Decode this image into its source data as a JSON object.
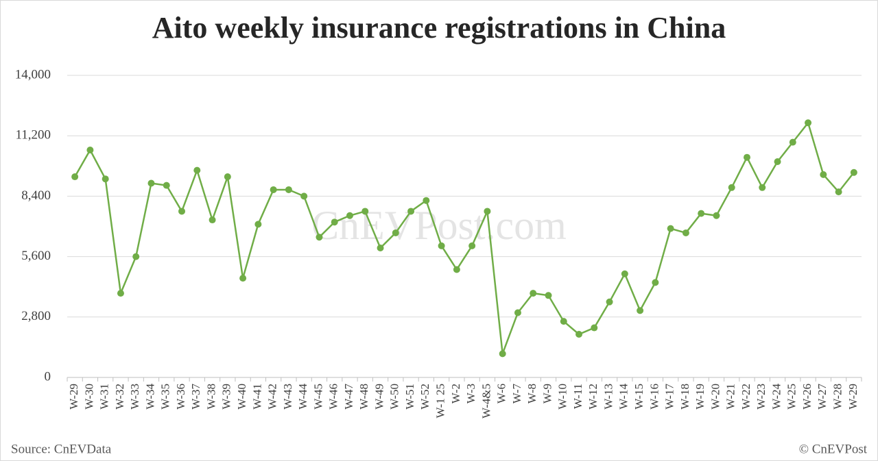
{
  "chart_data": {
    "type": "line",
    "title": "Aito weekly insurance registrations in China",
    "watermark": "CnEVPost.com",
    "source": "Source: CnEVData",
    "credit": "© CnEVPost",
    "categories": [
      "W-29",
      "W-30",
      "W-31",
      "W-32",
      "W-33",
      "W-34",
      "W-35",
      "W-36",
      "W-37",
      "W-38",
      "W-39",
      "W-40",
      "W-41",
      "W-42",
      "W-43",
      "W-44",
      "W-45",
      "W-46",
      "W-47",
      "W-48",
      "W-49",
      "W-50",
      "W-51",
      "W-52",
      "W-1 25",
      "W-2",
      "W-3",
      "W-4&5",
      "W-6",
      "W-7",
      "W-8",
      "W-9",
      "W-10",
      "W-11",
      "W-12",
      "W-13",
      "W-14",
      "W-15",
      "W-16",
      "W-17",
      "W-18",
      "W-19",
      "W-20",
      "W-21",
      "W-22",
      "W-23",
      "W-24",
      "W-25",
      "W-26",
      "W-27",
      "W-28",
      "W-29"
    ],
    "series": [
      {
        "color": "#70ad47",
        "values": [
          9300,
          10540,
          9200,
          3900,
          5600,
          9000,
          8900,
          7700,
          9600,
          7300,
          9300,
          4600,
          7100,
          8700,
          8700,
          8400,
          6500,
          7200,
          7500,
          7700,
          6000,
          6700,
          7700,
          8200,
          6100,
          5000,
          6100,
          7700,
          1100,
          3000,
          3900,
          3800,
          2600,
          2000,
          2300,
          3500,
          4800,
          3100,
          4400,
          6900,
          6700,
          7600,
          7500,
          8800,
          10200,
          8800,
          10000,
          10900,
          11800,
          9400,
          8600,
          9500
        ]
      }
    ],
    "ylim": [
      0,
      14000
    ],
    "yticks": [
      0,
      {
        "value": 2800,
        "label": "2,800"
      },
      {
        "value": 5600,
        "label": "5,600"
      },
      {
        "value": 8400,
        "label": "8,400"
      },
      {
        "value": 11200,
        "label": "11,200"
      },
      {
        "value": 14000,
        "label": "14,000"
      }
    ],
    "grid": true
  }
}
